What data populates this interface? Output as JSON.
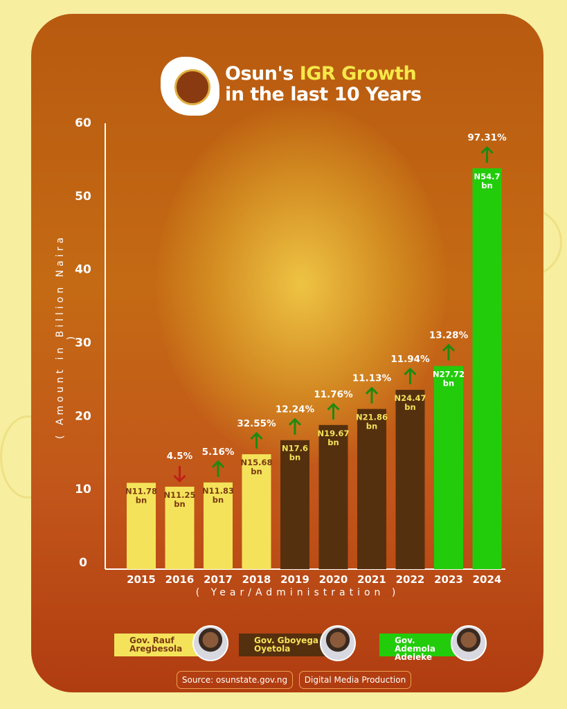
{
  "header": {
    "title_part1": "Osun's ",
    "title_highlight": "IGR Growth",
    "title_line2": "in the last 10 Years"
  },
  "chart_data": {
    "type": "bar",
    "ylabel": "( Amount in Billion Naira )",
    "xlabel": "( Year/Administration )",
    "ylim": [
      0,
      60
    ],
    "yticks": [
      0,
      10,
      20,
      30,
      40,
      50,
      60
    ],
    "categories": [
      "2015",
      "2016",
      "2017",
      "2018",
      "2019",
      "2020",
      "2021",
      "2022",
      "2023",
      "2024"
    ],
    "values": [
      11.78,
      11.25,
      11.83,
      15.68,
      17.6,
      19.67,
      21.86,
      24.47,
      27.72,
      54.7
    ],
    "value_labels": [
      [
        "N11.78",
        "bn"
      ],
      [
        "N11.25",
        "bn"
      ],
      [
        "N11.83",
        "bn"
      ],
      [
        "N15.68",
        "bn"
      ],
      [
        "N17.6",
        "bn"
      ],
      [
        "N19.67",
        "bn"
      ],
      [
        "N21.86",
        "bn"
      ],
      [
        "N24.47",
        "bn"
      ],
      [
        "N27.72",
        "bn"
      ],
      [
        "N54.7",
        "bn"
      ]
    ],
    "change_labels": [
      "",
      "4.5%",
      "5.16%",
      "32.55%",
      "12.24%",
      "11.76%",
      "11.13%",
      "11.94%",
      "13.28%",
      "97.31%"
    ],
    "change_direction": [
      "",
      "down",
      "up",
      "up",
      "up",
      "up",
      "up",
      "up",
      "up",
      "up"
    ],
    "administration": [
      "aregbesola",
      "aregbesola",
      "aregbesola",
      "aregbesola",
      "oyetola",
      "oyetola",
      "oyetola",
      "oyetola",
      "adeleke",
      "adeleke"
    ],
    "colors": {
      "aregbesola": "#f4e35a",
      "oyetola": "#55300e",
      "adeleke": "#22cc0a",
      "up": "#1e8a10",
      "down": "#c0201a"
    },
    "legend": [
      {
        "key": "aregbesola",
        "line1": "Gov. Rauf",
        "line2": "Aregbesola"
      },
      {
        "key": "oyetola",
        "line1": "Gov. Gboyega",
        "line2": "Oyetola"
      },
      {
        "key": "adeleke",
        "line1": "Gov. Ademola",
        "line2": "Adeleke"
      }
    ],
    "grid": false
  },
  "footer": {
    "source": "Source: osunstate.gov.ng",
    "credit": "Digital Media Production"
  }
}
